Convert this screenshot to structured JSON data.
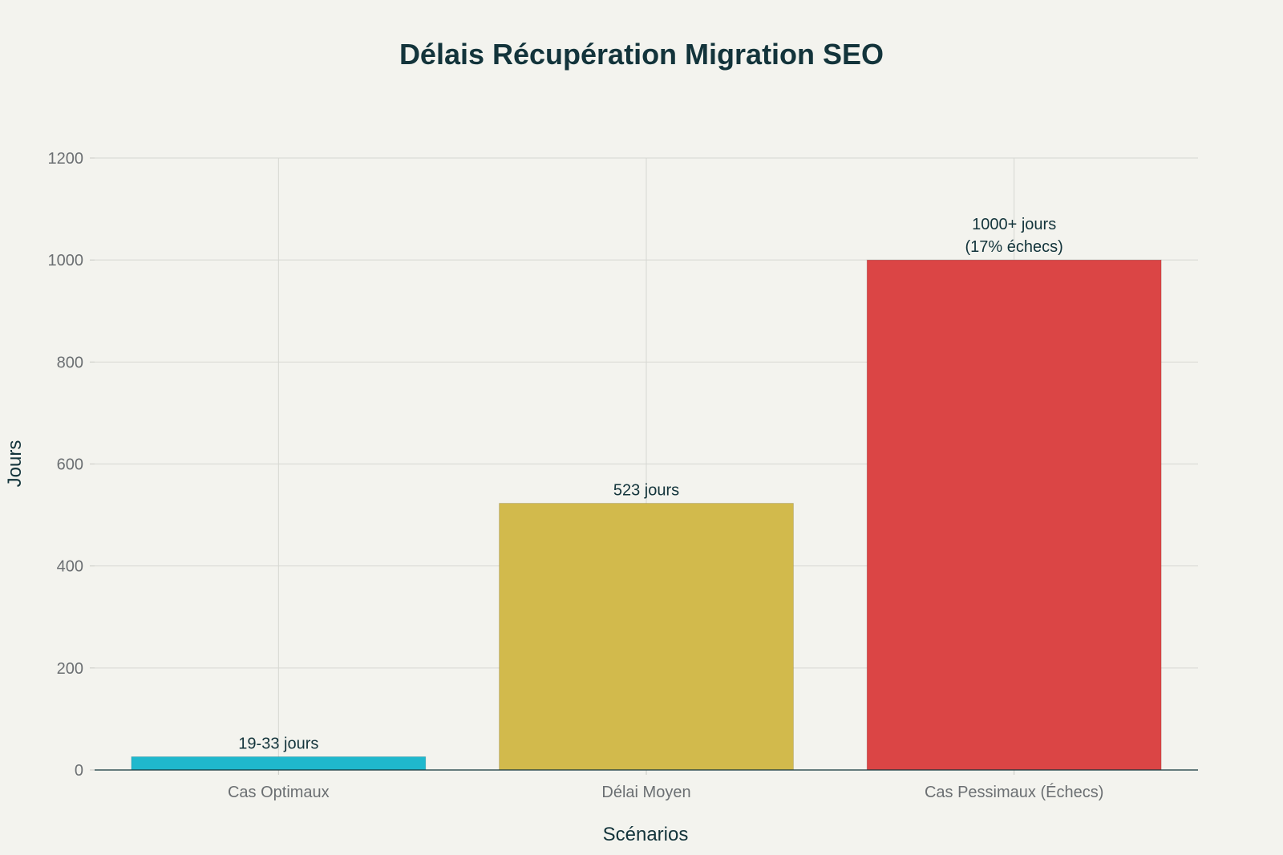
{
  "chart_data": {
    "type": "bar",
    "title": "Délais Récupération Migration SEO",
    "xlabel": "Scénarios",
    "ylabel": "Jours",
    "categories": [
      "Cas Optimaux",
      "Délai Moyen",
      "Cas Pessimaux (Échecs)"
    ],
    "values": [
      26,
      523,
      1000
    ],
    "data_labels": [
      [
        "19-33 jours"
      ],
      [
        "523 jours"
      ],
      [
        "1000+ jours",
        "(17% échecs)"
      ]
    ],
    "colors": [
      "#1fb8cd",
      "#d2ba4c",
      "#db4545"
    ],
    "ylim": [
      0,
      1200
    ],
    "yticks": [
      0,
      200,
      400,
      600,
      800,
      1000,
      1200
    ],
    "grid": true,
    "legend": "none"
  }
}
